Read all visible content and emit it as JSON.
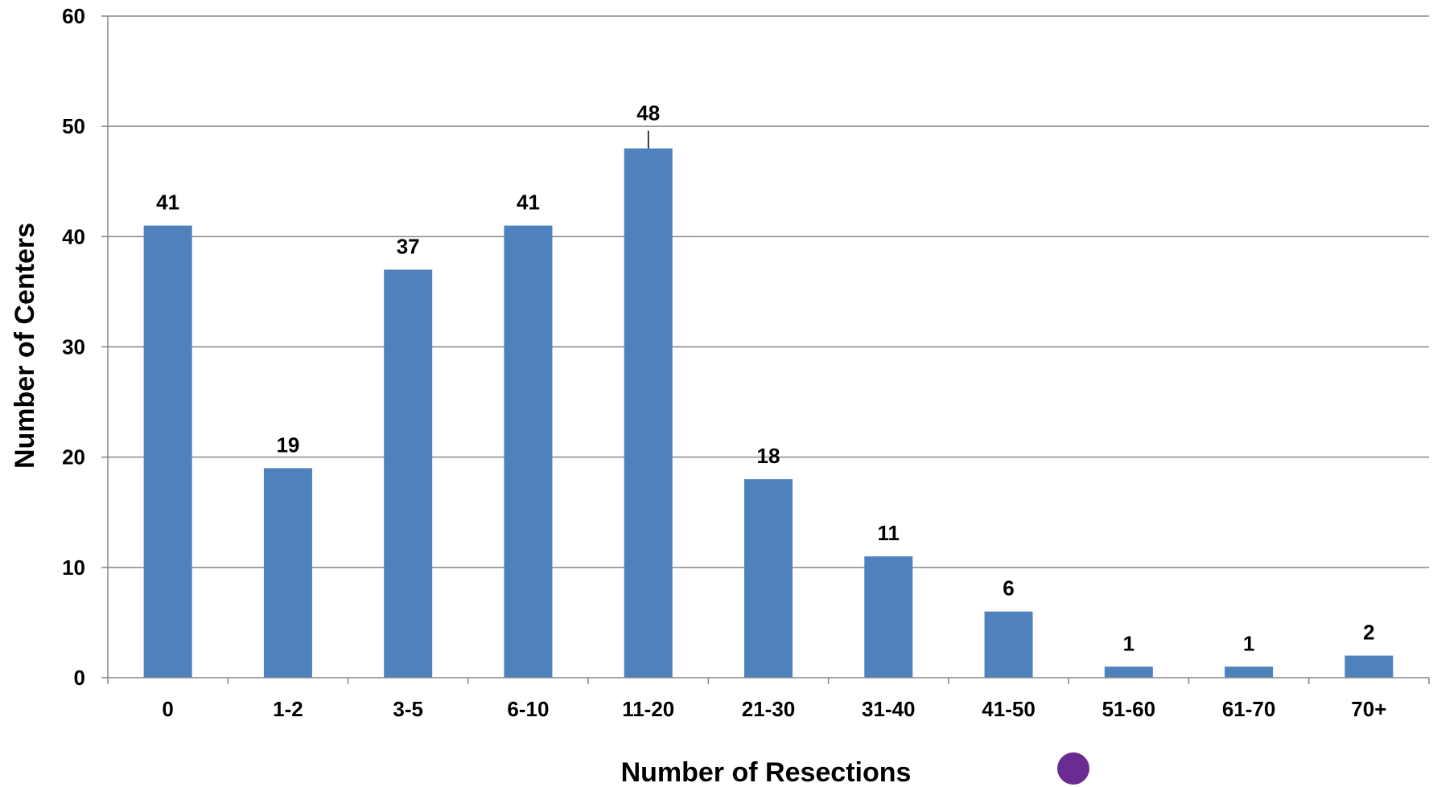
{
  "chart_data": {
    "type": "bar",
    "title": "",
    "xlabel": "Number of Resections",
    "ylabel": "Number of Centers",
    "categories": [
      "0",
      "1-2",
      "3-5",
      "6-10",
      "11-20",
      "21-30",
      "31-40",
      "41-50",
      "51-60",
      "61-70",
      "70+"
    ],
    "values": [
      41,
      19,
      37,
      41,
      48,
      18,
      11,
      6,
      1,
      1,
      2
    ],
    "data_labels": [
      "41",
      "19",
      "37",
      "41",
      "48",
      "18",
      "11",
      "6",
      "1",
      "1",
      "2"
    ],
    "ylim": [
      0,
      60
    ],
    "yticks": [
      "0",
      "10",
      "20",
      "30",
      "40",
      "50",
      "60"
    ],
    "grid": true,
    "legend": "none",
    "colors": {
      "bar": "#4f81bd",
      "grid": "#868686",
      "axis": "#868686",
      "marker": "#6a2c91"
    }
  }
}
